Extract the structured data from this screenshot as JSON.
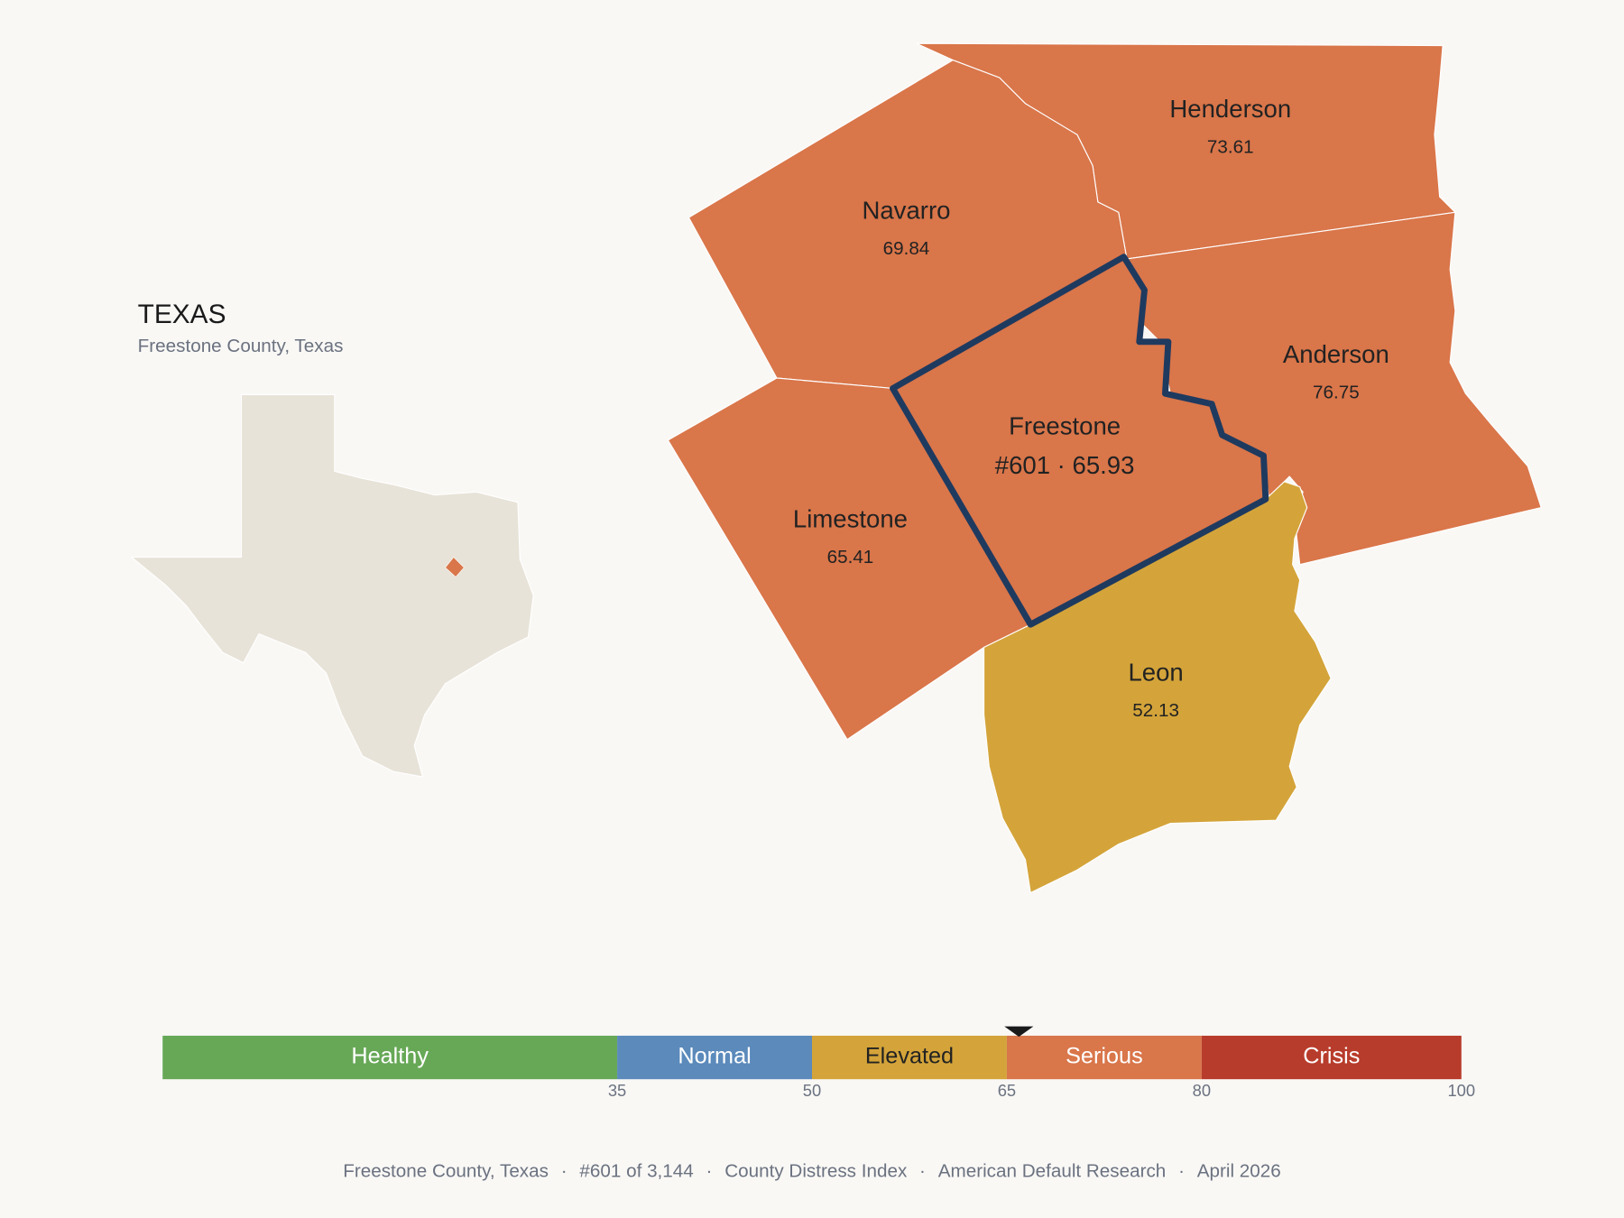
{
  "header": {
    "title": "TEXAS",
    "subtitle": "Freestone County, Texas"
  },
  "counties": [
    {
      "name": "Henderson",
      "value": 73.61,
      "color": "#d9764a"
    },
    {
      "name": "Navarro",
      "value": 69.84,
      "color": "#d9764a"
    },
    {
      "name": "Anderson",
      "value": 76.75,
      "color": "#d9764a"
    },
    {
      "name": "Freestone",
      "label": "#601 · 65.93",
      "color": "#d9764a"
    },
    {
      "name": "Limestone",
      "value": 65.41,
      "color": "#d9764a"
    },
    {
      "name": "Leon",
      "value": 52.13,
      "color": "#d4a43a"
    }
  ],
  "scale": {
    "min": 0,
    "max": 100,
    "ticks": [
      35,
      50,
      65,
      80,
      100
    ],
    "marker": 65.93,
    "bands": [
      {
        "name": "Healthy",
        "to": 35,
        "color": "#67a857"
      },
      {
        "name": "Normal",
        "to": 50,
        "color": "#5b8abb"
      },
      {
        "name": "Elevated",
        "to": 65,
        "color": "#d4a43a"
      },
      {
        "name": "Serious",
        "to": 80,
        "color": "#d9764a"
      },
      {
        "name": "Crisis",
        "to": 100,
        "color": "#b83c2b"
      }
    ]
  },
  "footer": {
    "separator": "·",
    "parts": [
      "Freestone County, Texas",
      "#601 of 3,144",
      "County Distress Index",
      "American Default Research",
      "April 2026"
    ]
  }
}
